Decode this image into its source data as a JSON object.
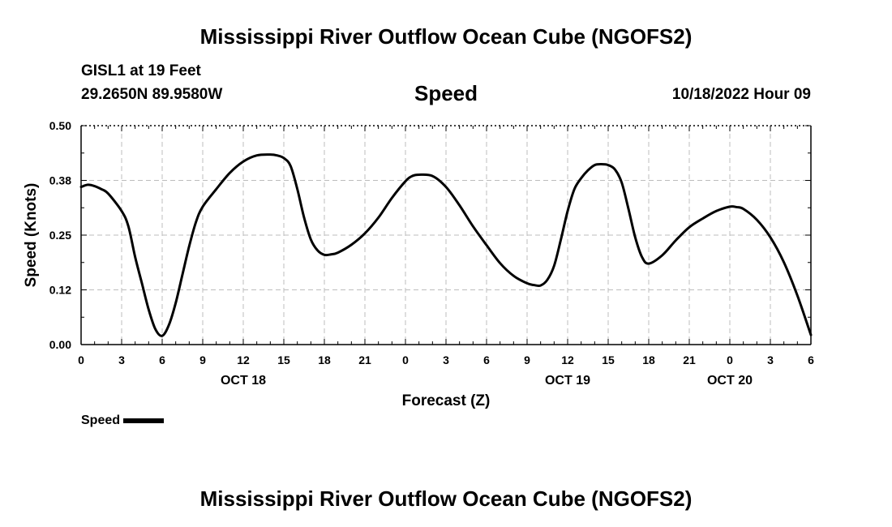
{
  "header": {
    "title": "Mississippi River Outflow Ocean Cube (NGOFS2)",
    "station": "GISL1 at 19 Feet",
    "coords": "29.2650N  89.9580W",
    "panel_title": "Speed",
    "timestamp": "10/18/2022 Hour 09"
  },
  "legend": {
    "label": "Speed"
  },
  "footer": {
    "title": "Mississippi River Outflow Ocean Cube (NGOFS2)"
  },
  "chart_data": {
    "type": "line",
    "title": "Speed",
    "xlabel": "Forecast (Z)",
    "ylabel": "Speed (Knots)",
    "ylim": [
      0,
      0.5
    ],
    "xlim": [
      0,
      54
    ],
    "y_ticks": [
      "0.00",
      "0.12",
      "0.25",
      "0.38",
      "0.50"
    ],
    "x_ticks": [
      "0",
      "3",
      "6",
      "9",
      "12",
      "15",
      "18",
      "21",
      "0",
      "3",
      "6",
      "9",
      "12",
      "15",
      "18",
      "21",
      "0",
      "3",
      "6"
    ],
    "date_labels": [
      {
        "label": "OCT 18",
        "hour": 12
      },
      {
        "label": "OCT 19",
        "hour": 36
      },
      {
        "label": "OCT 20",
        "hour": 48
      }
    ],
    "grid": true,
    "legend_position": "bottom-left",
    "series": [
      {
        "name": "Speed",
        "color": "#000000",
        "x": [
          0,
          0.5,
          1,
          1.5,
          2,
          3,
          3.5,
          4,
          4.5,
          5,
          5.5,
          6,
          6.5,
          7,
          7.5,
          8,
          8.5,
          9,
          10,
          11,
          12,
          13,
          14,
          14.5,
          15,
          15.5,
          16,
          16.5,
          17,
          17.5,
          18,
          18.5,
          19,
          20,
          21,
          22,
          23,
          24,
          24.5,
          25,
          26,
          27,
          28,
          29,
          30,
          31,
          32,
          33,
          33.5,
          34,
          34.5,
          35,
          35.5,
          36,
          36.5,
          37,
          37.5,
          38,
          38.5,
          39,
          39.5,
          40,
          40.5,
          41,
          41.5,
          42,
          43,
          44,
          45,
          46,
          47,
          48,
          48.5,
          49,
          50,
          51,
          52,
          53,
          54
        ],
        "y": [
          0.36,
          0.365,
          0.362,
          0.355,
          0.345,
          0.305,
          0.27,
          0.2,
          0.14,
          0.08,
          0.035,
          0.02,
          0.045,
          0.095,
          0.16,
          0.225,
          0.28,
          0.315,
          0.355,
          0.392,
          0.418,
          0.432,
          0.434,
          0.432,
          0.426,
          0.408,
          0.355,
          0.29,
          0.24,
          0.215,
          0.205,
          0.206,
          0.21,
          0.228,
          0.254,
          0.29,
          0.335,
          0.373,
          0.385,
          0.388,
          0.385,
          0.36,
          0.318,
          0.27,
          0.227,
          0.186,
          0.157,
          0.14,
          0.136,
          0.135,
          0.148,
          0.18,
          0.24,
          0.305,
          0.355,
          0.38,
          0.398,
          0.41,
          0.412,
          0.41,
          0.4,
          0.37,
          0.31,
          0.245,
          0.2,
          0.185,
          0.204,
          0.238,
          0.268,
          0.288,
          0.305,
          0.315,
          0.314,
          0.31,
          0.285,
          0.245,
          0.188,
          0.112,
          0.022
        ]
      }
    ]
  }
}
